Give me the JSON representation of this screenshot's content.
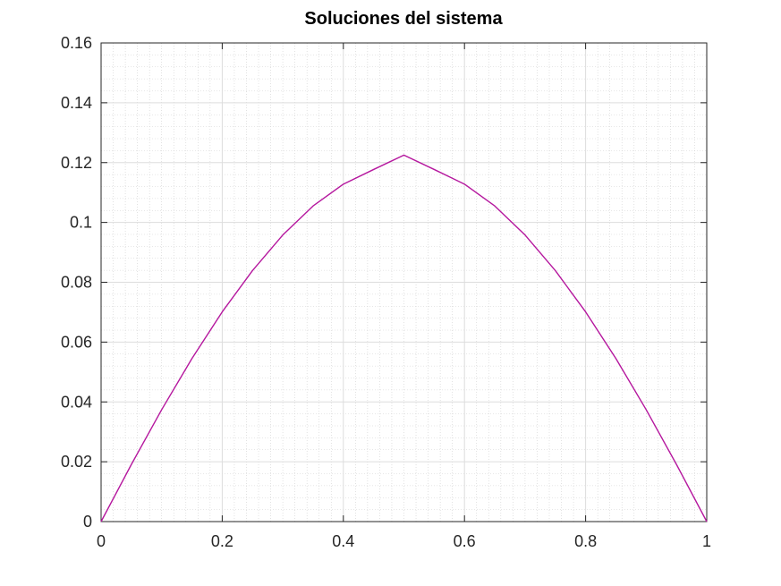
{
  "chart_data": {
    "type": "line",
    "title": "Soluciones del sistema",
    "xlabel": "",
    "ylabel": "",
    "xlim": [
      0,
      1
    ],
    "ylim": [
      0,
      0.16
    ],
    "x_ticks": [
      "0",
      "0.2",
      "0.4",
      "0.6",
      "0.8",
      "1"
    ],
    "y_ticks": [
      "0",
      "0.02",
      "0.04",
      "0.06",
      "0.08",
      "0.1",
      "0.12",
      "0.14",
      "0.16"
    ],
    "grid": true,
    "minor_grid": true,
    "series": [
      {
        "color": "#b5179e",
        "x": [
          0,
          0.05,
          0.1,
          0.15,
          0.2,
          0.25,
          0.3,
          0.35,
          0.4,
          0.45,
          0.5,
          0.55,
          0.6,
          0.65,
          0.7,
          0.75,
          0.8,
          0.85,
          0.9,
          0.95,
          1
        ],
        "y": [
          0,
          0.0191,
          0.0374,
          0.0545,
          0.0701,
          0.0839,
          0.0958,
          0.1055,
          0.1128,
          0.1177,
          0.1225,
          0.1177,
          0.1128,
          0.1055,
          0.0958,
          0.0839,
          0.0701,
          0.0545,
          0.0374,
          0.0191,
          0
        ]
      }
    ]
  }
}
